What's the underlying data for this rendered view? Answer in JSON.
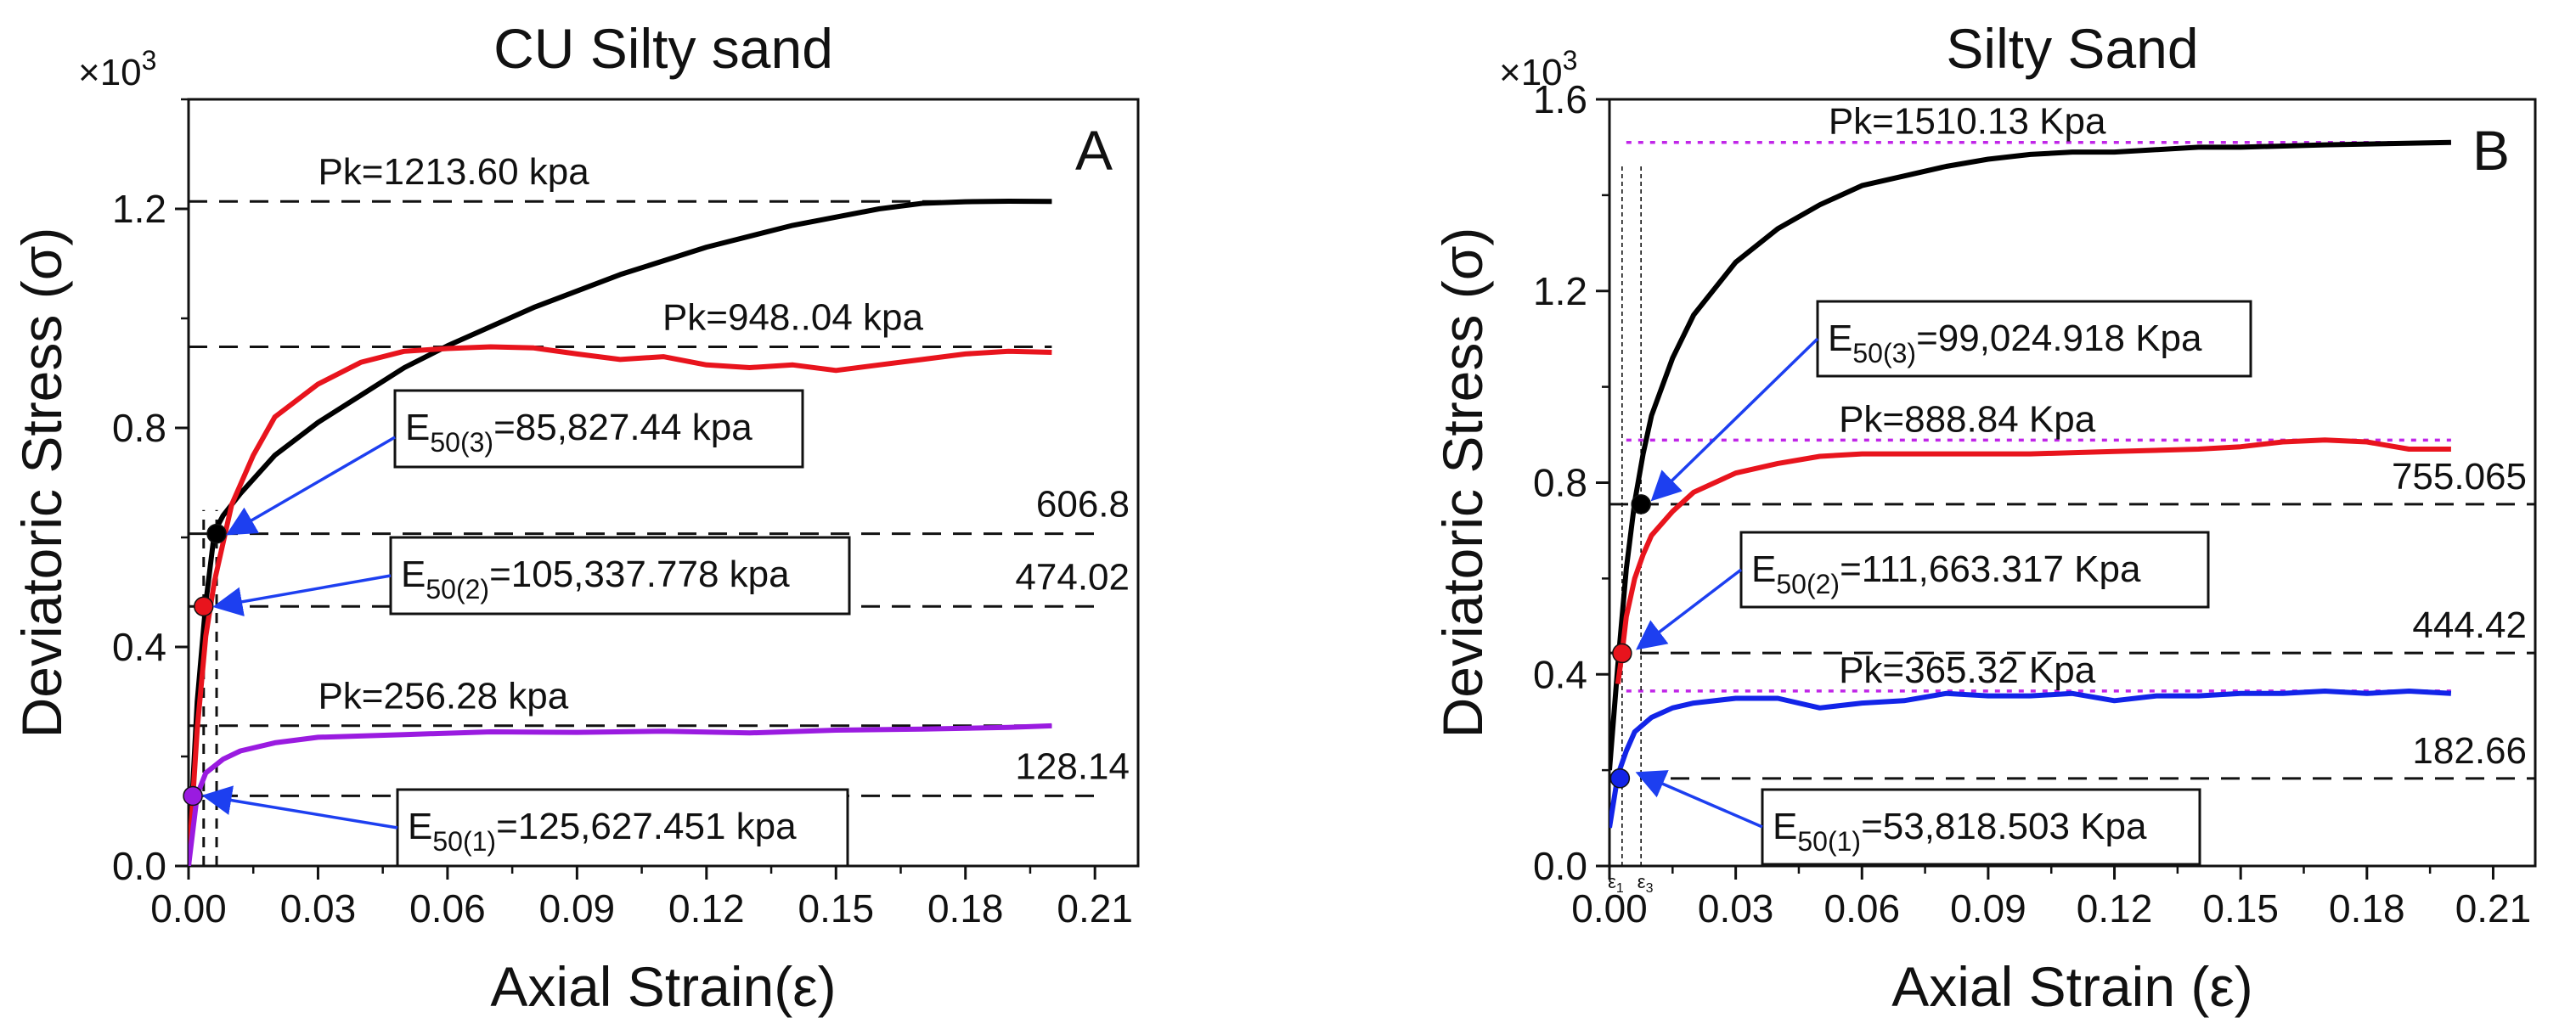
{
  "chart_data": [
    {
      "panel_label": "A",
      "type": "line",
      "title": "CU Silty sand",
      "xlabel": "Axial Strain(ε)",
      "ylabel": "Deviatoric Stress (σ)",
      "y_multiplier": "×10",
      "y_multiplier_exp": "3",
      "xlim": [
        0,
        0.22
      ],
      "ylim": [
        0,
        1.4
      ],
      "xticks": [
        "0.00",
        "0.03",
        "0.06",
        "0.09",
        "0.12",
        "0.15",
        "0.18",
        "0.21"
      ],
      "yticks": [
        "0.0",
        "0.4",
        "0.8",
        "1.2"
      ],
      "series": [
        {
          "name": "curve-3",
          "color": "#000000",
          "x": [
            0,
            0.002,
            0.004,
            0.006,
            0.008,
            0.012,
            0.02,
            0.03,
            0.04,
            0.05,
            0.06,
            0.08,
            0.1,
            0.12,
            0.14,
            0.16,
            0.17,
            0.18,
            0.19,
            0.2
          ],
          "y": [
            0,
            0.3,
            0.48,
            0.61,
            0.64,
            0.68,
            0.75,
            0.81,
            0.86,
            0.91,
            0.95,
            1.02,
            1.08,
            1.13,
            1.17,
            1.2,
            1.21,
            1.213,
            1.214,
            1.2136
          ]
        },
        {
          "name": "curve-2",
          "color": "#e8141d",
          "x": [
            0,
            0.002,
            0.004,
            0.006,
            0.01,
            0.015,
            0.02,
            0.03,
            0.04,
            0.05,
            0.06,
            0.07,
            0.08,
            0.09,
            0.1,
            0.11,
            0.12,
            0.13,
            0.14,
            0.15,
            0.16,
            0.17,
            0.18,
            0.19,
            0.2
          ],
          "y": [
            0,
            0.25,
            0.42,
            0.52,
            0.66,
            0.75,
            0.82,
            0.88,
            0.92,
            0.94,
            0.945,
            0.948,
            0.946,
            0.935,
            0.925,
            0.93,
            0.915,
            0.91,
            0.915,
            0.905,
            0.915,
            0.925,
            0.935,
            0.94,
            0.938
          ]
        },
        {
          "name": "curve-1",
          "color": "#9a1be0",
          "x": [
            0,
            0.002,
            0.004,
            0.008,
            0.012,
            0.02,
            0.03,
            0.05,
            0.07,
            0.09,
            0.11,
            0.13,
            0.15,
            0.17,
            0.19,
            0.2
          ],
          "y": [
            0,
            0.13,
            0.17,
            0.195,
            0.21,
            0.225,
            0.235,
            0.24,
            0.245,
            0.244,
            0.246,
            0.243,
            0.248,
            0.25,
            0.253,
            0.256
          ]
        }
      ],
      "points": [
        {
          "x": 0.0065,
          "y": 0.6068,
          "color": "#000000"
        },
        {
          "x": 0.0035,
          "y": 0.474,
          "color": "#e8141d"
        },
        {
          "x": 0.001,
          "y": 0.128,
          "color": "#9a1be0"
        }
      ],
      "hlines": [
        {
          "y": 1.2136,
          "x_to": 0.2,
          "label": "Pk=1213.60 kpa",
          "label_pos": "above-left"
        },
        {
          "y": 0.948,
          "x_to": 0.2,
          "label": "Pk=948..04 kpa",
          "label_pos": "above-mid"
        },
        {
          "y": 0.6068,
          "x_to": 0.21,
          "label": "606.8",
          "label_pos": "right"
        },
        {
          "y": 0.47402,
          "x_to": 0.21,
          "label": "474.02",
          "label_pos": "right"
        },
        {
          "y": 0.25628,
          "x_to": 0.2,
          "label": "Pk=256.28 kpa",
          "label_pos": "above-left"
        },
        {
          "y": 0.12814,
          "x_to": 0.21,
          "label": "128.14",
          "label_pos": "right"
        }
      ],
      "annotations": [
        {
          "main": "E",
          "sub": "50(3)",
          "value": "=85,827.44 kpa",
          "target_x": 0.0065,
          "target_y": 0.6068
        },
        {
          "main": "E",
          "sub": "50(2)",
          "value": "=105,337.778 kpa",
          "target_x": 0.0035,
          "target_y": 0.474
        },
        {
          "main": "E",
          "sub": "50(1)",
          "value": "=125,627.451 kpa",
          "target_x": 0.001,
          "target_y": 0.128
        }
      ]
    },
    {
      "panel_label": "B",
      "type": "line",
      "title": "Silty Sand",
      "xlabel": "Axial Strain (ε)",
      "ylabel": "Deviatoric Stress (σ)",
      "y_multiplier": "×10",
      "y_multiplier_exp": "3",
      "xlim": [
        0,
        0.22
      ],
      "ylim": [
        0,
        1.6
      ],
      "xticks": [
        "0.00",
        "0.03",
        "0.06",
        "0.09",
        "0.12",
        "0.15",
        "0.18",
        "0.21"
      ],
      "yticks": [
        "0.0",
        "0.4",
        "0.8",
        "1.2",
        "1.6"
      ],
      "strain_marks": [
        "ε",
        "1",
        "ε",
        "3"
      ],
      "series": [
        {
          "name": "curve-3",
          "color": "#000000",
          "x": [
            0,
            0.002,
            0.004,
            0.006,
            0.008,
            0.01,
            0.015,
            0.02,
            0.03,
            0.04,
            0.05,
            0.06,
            0.07,
            0.08,
            0.09,
            0.1,
            0.11,
            0.12,
            0.13,
            0.14,
            0.15,
            0.17,
            0.2
          ],
          "y": [
            0.2,
            0.42,
            0.62,
            0.76,
            0.86,
            0.94,
            1.06,
            1.15,
            1.26,
            1.33,
            1.38,
            1.42,
            1.44,
            1.46,
            1.475,
            1.485,
            1.49,
            1.49,
            1.495,
            1.5,
            1.5,
            1.505,
            1.51
          ]
        },
        {
          "name": "curve-2",
          "color": "#e8141d",
          "x": [
            0.002,
            0.003,
            0.004,
            0.006,
            0.008,
            0.01,
            0.015,
            0.02,
            0.03,
            0.04,
            0.05,
            0.06,
            0.08,
            0.1,
            0.12,
            0.14,
            0.15,
            0.16,
            0.17,
            0.18,
            0.19,
            0.2
          ],
          "y": [
            0.38,
            0.445,
            0.52,
            0.6,
            0.65,
            0.69,
            0.74,
            0.78,
            0.82,
            0.84,
            0.855,
            0.86,
            0.86,
            0.86,
            0.865,
            0.87,
            0.875,
            0.885,
            0.889,
            0.885,
            0.87,
            0.87
          ]
        },
        {
          "name": "curve-1",
          "color": "#1224e8",
          "x": [
            0,
            0.002,
            0.004,
            0.006,
            0.01,
            0.015,
            0.02,
            0.03,
            0.04,
            0.05,
            0.06,
            0.07,
            0.08,
            0.09,
            0.1,
            0.11,
            0.12,
            0.13,
            0.14,
            0.15,
            0.16,
            0.17,
            0.18,
            0.19,
            0.2
          ],
          "y": [
            0.08,
            0.19,
            0.24,
            0.28,
            0.31,
            0.33,
            0.34,
            0.35,
            0.35,
            0.33,
            0.34,
            0.345,
            0.36,
            0.355,
            0.355,
            0.36,
            0.345,
            0.355,
            0.355,
            0.36,
            0.36,
            0.365,
            0.36,
            0.365,
            0.36
          ]
        }
      ],
      "points": [
        {
          "x": 0.0075,
          "y": 0.755,
          "color": "#000000"
        },
        {
          "x": 0.003,
          "y": 0.444,
          "color": "#e8141d"
        },
        {
          "x": 0.0025,
          "y": 0.183,
          "color": "#1224e8"
        }
      ],
      "pk_lines": [
        {
          "y": 1.51013,
          "label": "Pk=1510.13 Kpa"
        },
        {
          "y": 0.88884,
          "label": "Pk=888.84 Kpa"
        },
        {
          "y": 0.36532,
          "label": "Pk=365.32 Kpa"
        }
      ],
      "hlines": [
        {
          "y": 0.755065,
          "label": "755.065"
        },
        {
          "y": 0.44442,
          "label": "444.42"
        },
        {
          "y": 0.18266,
          "label": "182.66"
        }
      ],
      "annotations": [
        {
          "main": "E",
          "sub": "50(3)",
          "value": "=99,024.918 Kpa",
          "target_x": 0.0075,
          "target_y": 0.755
        },
        {
          "main": "E",
          "sub": "50(2)",
          "value": "=111,663.317 Kpa",
          "target_x": 0.004,
          "target_y": 0.444
        },
        {
          "main": "E",
          "sub": "50(1)",
          "value": "=53,818.503 Kpa",
          "target_x": 0.004,
          "target_y": 0.183
        }
      ]
    }
  ]
}
